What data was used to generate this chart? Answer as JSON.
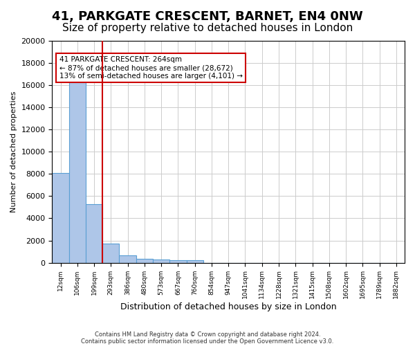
{
  "title_line1": "41, PARKGATE CRESCENT, BARNET, EN4 0NW",
  "title_line2": "Size of property relative to detached houses in London",
  "xlabel": "Distribution of detached houses by size in London",
  "ylabel": "Number of detached properties",
  "bar_color": "#aec6e8",
  "bar_edge_color": "#5a9fd4",
  "vline_color": "#cc0000",
  "vline_position": 2.5,
  "annotation_text": "41 PARKGATE CRESCENT: 264sqm\n← 87% of detached houses are smaller (28,672)\n13% of semi-detached houses are larger (4,101) →",
  "annotation_box_color": "#cc0000",
  "annotation_text_color": "#000000",
  "footnote_line1": "Contains HM Land Registry data © Crown copyright and database right 2024.",
  "footnote_line2": "Contains public sector information licensed under the Open Government Licence v3.0.",
  "bar_values": [
    8100,
    16500,
    5300,
    1750,
    650,
    330,
    270,
    210,
    210,
    0,
    0,
    0,
    0,
    0,
    0,
    0,
    0,
    0,
    0,
    0,
    0
  ],
  "x_labels": [
    "12sqm",
    "106sqm",
    "199sqm",
    "293sqm",
    "386sqm",
    "480sqm",
    "573sqm",
    "667sqm",
    "760sqm",
    "854sqm",
    "947sqm",
    "1041sqm",
    "1134sqm",
    "1228sqm",
    "1321sqm",
    "1415sqm",
    "1508sqm",
    "1602sqm",
    "1695sqm",
    "1789sqm",
    "1882sqm"
  ],
  "ylim": [
    0,
    20000
  ],
  "yticks": [
    0,
    2000,
    4000,
    6000,
    8000,
    10000,
    12000,
    14000,
    16000,
    18000,
    20000
  ],
  "background_color": "#ffffff",
  "grid_color": "#cccccc",
  "title_fontsize": 13,
  "subtitle_fontsize": 11
}
